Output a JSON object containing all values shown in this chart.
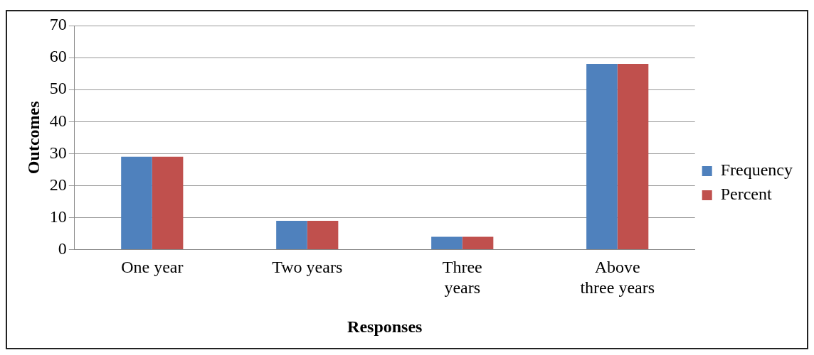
{
  "chart_data": {
    "type": "bar",
    "xlabel": "Responses",
    "ylabel": "Outcomes",
    "categories": [
      "One year",
      "Two years",
      "Three\nyears",
      "Above\nthree years"
    ],
    "series": [
      {
        "name": "Frequency",
        "color": "#4f81bd",
        "values": [
          29,
          9,
          4,
          58
        ]
      },
      {
        "name": "Percent",
        "color": "#c0504d",
        "values": [
          29,
          9,
          4,
          58
        ]
      }
    ],
    "ylim": [
      0,
      70
    ],
    "yticks": [
      0,
      10,
      20,
      30,
      40,
      50,
      60,
      70
    ],
    "grid": "y",
    "legend": "right"
  }
}
